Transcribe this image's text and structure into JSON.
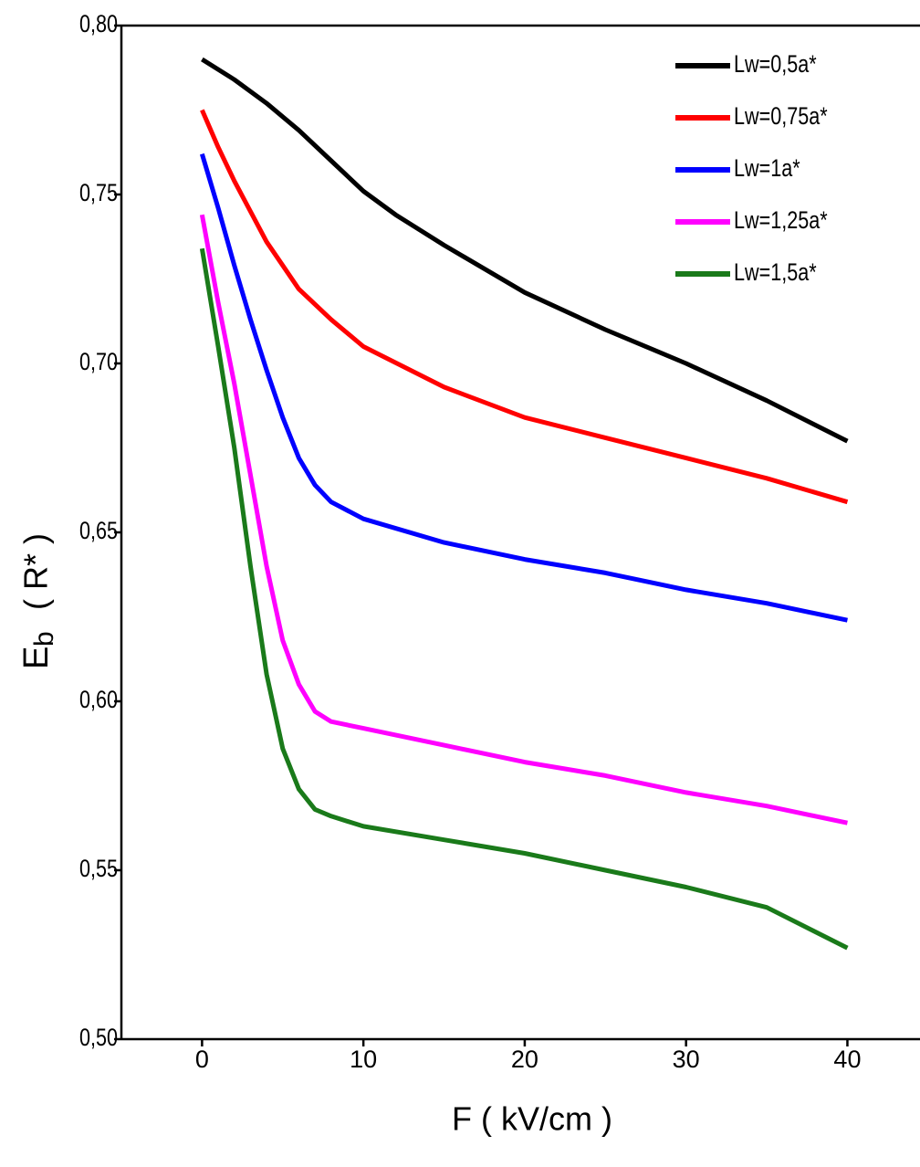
{
  "chart_data": {
    "type": "line",
    "xlabel": "F ( kV/cm )",
    "ylabel": {
      "main": "E",
      "sub": "b",
      "unit": "( R* )"
    },
    "xlim": [
      -5,
      44.5
    ],
    "ylim": [
      0.5,
      0.8
    ],
    "xticks": [
      0,
      10,
      20,
      30,
      40
    ],
    "yticks": [
      {
        "value": 0.5,
        "label": "0,50"
      },
      {
        "value": 0.55,
        "label": "0,55"
      },
      {
        "value": 0.6,
        "label": "0,60"
      },
      {
        "value": 0.65,
        "label": "0,65"
      },
      {
        "value": 0.7,
        "label": "0,70"
      },
      {
        "value": 0.75,
        "label": "0,75"
      },
      {
        "value": 0.8,
        "label": "0,80"
      }
    ],
    "legend": "upper right",
    "series": [
      {
        "name": "Lw=0,5a*",
        "color": "#000000",
        "x": [
          0,
          2,
          4,
          6,
          8,
          10,
          12,
          15,
          20,
          25,
          30,
          35,
          40
        ],
        "values": [
          0.79,
          0.784,
          0.777,
          0.769,
          0.76,
          0.751,
          0.744,
          0.735,
          0.721,
          0.71,
          0.7,
          0.689,
          0.677
        ]
      },
      {
        "name": "Lw=0,75a*",
        "color": "#ff0000",
        "x": [
          0,
          1,
          2,
          3,
          4,
          5,
          6,
          8,
          10,
          15,
          20,
          25,
          30,
          35,
          40
        ],
        "values": [
          0.775,
          0.764,
          0.754,
          0.745,
          0.736,
          0.729,
          0.722,
          0.713,
          0.705,
          0.693,
          0.684,
          0.678,
          0.672,
          0.666,
          0.659
        ]
      },
      {
        "name": "Lw=1a*",
        "color": "#0000ff",
        "x": [
          0,
          1,
          2,
          3,
          4,
          5,
          6,
          7,
          8,
          10,
          15,
          20,
          25,
          30,
          35,
          40
        ],
        "values": [
          0.762,
          0.746,
          0.729,
          0.713,
          0.698,
          0.684,
          0.672,
          0.664,
          0.659,
          0.654,
          0.647,
          0.642,
          0.638,
          0.633,
          0.629,
          0.624
        ]
      },
      {
        "name": "Lw=1,25a*",
        "color": "#ff00ff",
        "x": [
          0,
          1,
          2,
          3,
          4,
          5,
          6,
          7,
          8,
          10,
          15,
          20,
          25,
          30,
          35,
          40
        ],
        "values": [
          0.744,
          0.718,
          0.694,
          0.667,
          0.64,
          0.618,
          0.605,
          0.597,
          0.594,
          0.592,
          0.587,
          0.582,
          0.578,
          0.573,
          0.569,
          0.564
        ]
      },
      {
        "name": "Lw=1,5a*",
        "color": "#1a7a1a",
        "x": [
          0,
          1,
          2,
          3,
          4,
          5,
          6,
          7,
          8,
          10,
          15,
          20,
          25,
          30,
          35,
          40
        ],
        "values": [
          0.734,
          0.705,
          0.675,
          0.64,
          0.608,
          0.586,
          0.574,
          0.568,
          0.566,
          0.563,
          0.559,
          0.555,
          0.55,
          0.545,
          0.539,
          0.527
        ]
      }
    ]
  }
}
